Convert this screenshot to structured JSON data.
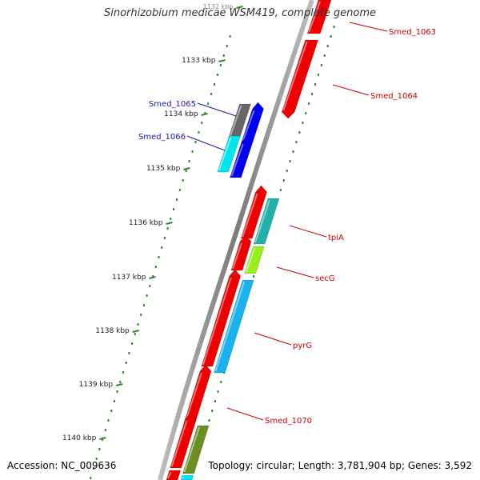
{
  "header": {
    "title": "Sinorhizobium medicae WSM419, complete genome"
  },
  "footer": {
    "accession": "Accession: NC_009636",
    "summary": "Topology: circular; Length: 3,781,904 bp; Genes: 3,592"
  },
  "ticks": [
    {
      "label": "1132 kbp",
      "at": -0.05
    },
    {
      "label": "1133 kbp",
      "at": 0.0
    },
    {
      "label": "1134 kbp",
      "at": 1.0
    },
    {
      "label": "1135 kbp",
      "at": 2.0
    },
    {
      "label": "1136 kbp",
      "at": 3.0
    },
    {
      "label": "1137 kbp",
      "at": 4.0
    },
    {
      "label": "1138 kbp",
      "at": 5.0
    },
    {
      "label": "1139 kbp",
      "at": 6.0
    },
    {
      "label": "1140 kbp",
      "at": 7.0
    }
  ],
  "genes": [
    {
      "label": "Smed_1063",
      "label_color": "#cc0000"
    },
    {
      "label": "Smed_1064",
      "label_color": "#cc0000"
    },
    {
      "label": "Smed_1065",
      "label_color": "#1a1ab4"
    },
    {
      "label": "Smed_1066",
      "label_color": "#1a1ab4"
    },
    {
      "label": "tpiA",
      "label_color": "#cc0000"
    },
    {
      "label": "secG",
      "label_color": "#cc0000"
    },
    {
      "label": "pyrG",
      "label_color": "#cc0000"
    },
    {
      "label": "Smed_1070",
      "label_color": "#cc0000"
    }
  ],
  "colors": {
    "backbone": "#8c8c8c",
    "tick_dots": "#2e8b2e",
    "cds_red": "#ee0000",
    "cds_blue": "#0000ee",
    "cds_cyan": "#00e5ee",
    "cds_teal": "#20b2aa",
    "cds_lime": "#9aee20",
    "cds_sky": "#1ab2ee",
    "cds_olive": "#6b8e23",
    "cds_gray": "#666666"
  }
}
